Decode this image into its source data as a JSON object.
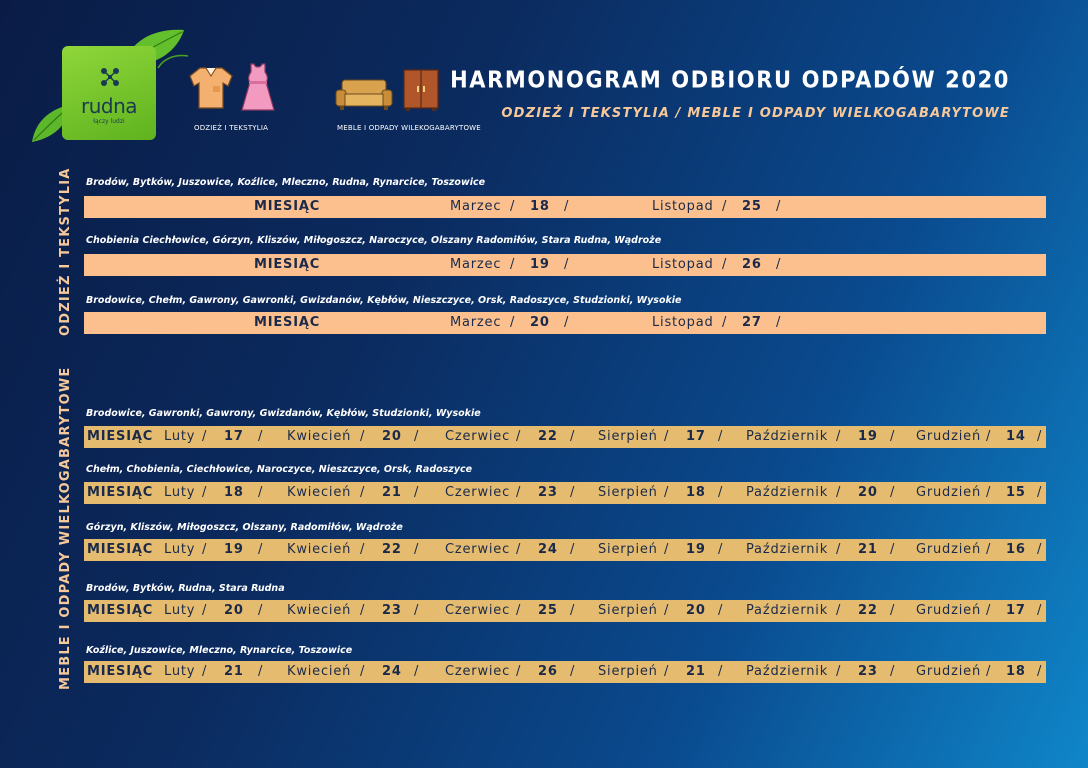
{
  "logo": {
    "name": "rudna",
    "tagline": "łączy ludzi"
  },
  "icons": {
    "textile_caption": "ODZIEŻ I TEKSTYLIA",
    "furniture_caption": "MEBLE I ODPADY WILEKOGABARYTOWE"
  },
  "header": {
    "title": "HARMONOGRAM ODBIORU ODPADÓW 2020",
    "subtitle": "ODZIEŻ I TEKSTYLIA / MEBLE I ODPADY WIELKOGABARYTOWE"
  },
  "side_labels": {
    "textile": "ODZIEŻ I TEKSTYLIA",
    "furniture": "MEBLE I ODPADY WIELKOGABARYTOWE"
  },
  "sep": "/",
  "month_label": "MIESIĄC",
  "textile_rows": [
    {
      "locations": "Brodów, Bytków, Juszowice, Koźlice, Mleczno, Rudna, Rynarcice, Toszowice",
      "m1": "Marzec",
      "d1": "18",
      "m2": "Listopad",
      "d2": "25"
    },
    {
      "locations": "Chobienia Ciechłowice, Górzyn, Kliszów, Miłogoszcz, Naroczyce, Olszany Radomiłów, Stara Rudna, Wądroże",
      "m1": "Marzec",
      "d1": "19",
      "m2": "Listopad",
      "d2": "26"
    },
    {
      "locations": "Brodowice, Chełm, Gawrony, Gawronki, Gwizdanów, Kębłów, Nieszczyce, Orsk, Radoszyce, Studzionki, Wysokie",
      "m1": "Marzec",
      "d1": "20",
      "m2": "Listopad",
      "d2": "27"
    }
  ],
  "furniture_months": [
    "Luty",
    "Kwiecień",
    "Czerwiec",
    "Sierpień",
    "Październik",
    "Grudzień"
  ],
  "furniture_rows": [
    {
      "locations": "Brodowice, Gawronki, Gawrony, Gwizdanów, Kębłów, Studzionki, Wysokie",
      "days": [
        "17",
        "20",
        "22",
        "17",
        "19",
        "14"
      ]
    },
    {
      "locations": "Chełm, Chobienia, Ciechłowice, Naroczyce, Nieszczyce, Orsk, Radoszyce",
      "days": [
        "18",
        "21",
        "23",
        "18",
        "20",
        "15"
      ]
    },
    {
      "locations": "Górzyn, Kliszów, Miłogoszcz, Olszany, Radomiłów, Wądroże",
      "days": [
        "19",
        "22",
        "24",
        "19",
        "21",
        "16"
      ]
    },
    {
      "locations": "Brodów, Bytków, Rudna, Stara Rudna",
      "days": [
        "20",
        "23",
        "25",
        "20",
        "22",
        "17"
      ]
    },
    {
      "locations": "Koźlice, Juszowice, Mleczno, Rynarcice, Toszowice",
      "days": [
        "21",
        "24",
        "26",
        "21",
        "23",
        "18"
      ]
    }
  ]
}
